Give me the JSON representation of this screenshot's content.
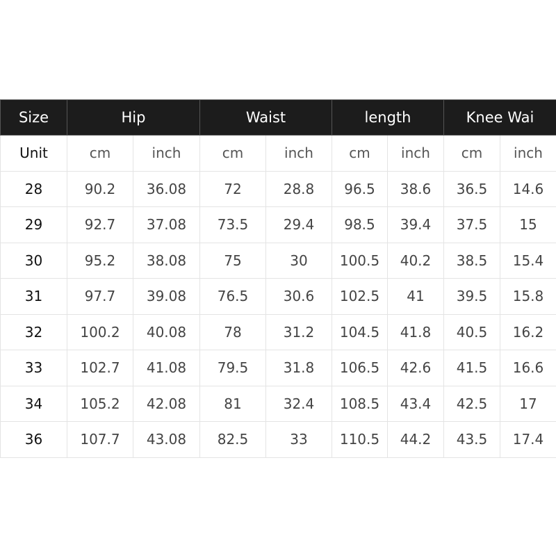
{
  "table": {
    "header": [
      {
        "label": "Size",
        "span": 1
      },
      {
        "label": "Hip",
        "span": 2
      },
      {
        "label": "Waist",
        "span": 2
      },
      {
        "label": "length",
        "span": 2
      },
      {
        "label": "Knee Wai",
        "span": 2
      }
    ],
    "unit_row": [
      "Unit",
      "cm",
      "inch",
      "cm",
      "inch",
      "cm",
      "inch",
      "cm",
      "inch"
    ],
    "rows": [
      [
        "28",
        "90.2",
        "36.08",
        "72",
        "28.8",
        "96.5",
        "38.6",
        "36.5",
        "14.6"
      ],
      [
        "29",
        "92.7",
        "37.08",
        "73.5",
        "29.4",
        "98.5",
        "39.4",
        "37.5",
        "15"
      ],
      [
        "30",
        "95.2",
        "38.08",
        "75",
        "30",
        "100.5",
        "40.2",
        "38.5",
        "15.4"
      ],
      [
        "31",
        "97.7",
        "39.08",
        "76.5",
        "30.6",
        "102.5",
        "41",
        "39.5",
        "15.8"
      ],
      [
        "32",
        "100.2",
        "40.08",
        "78",
        "31.2",
        "104.5",
        "41.8",
        "40.5",
        "16.2"
      ],
      [
        "33",
        "102.7",
        "41.08",
        "79.5",
        "31.8",
        "106.5",
        "42.6",
        "41.5",
        "16.6"
      ],
      [
        "34",
        "105.2",
        "42.08",
        "81",
        "32.4",
        "108.5",
        "43.4",
        "42.5",
        "17"
      ],
      [
        "36",
        "107.7",
        "43.08",
        "82.5",
        "33",
        "110.5",
        "44.2",
        "43.5",
        "17.4"
      ]
    ]
  },
  "colors": {
    "header_bg": "#1c1c1c",
    "header_text": "#ffffff",
    "grid": "#e4e4e4"
  }
}
